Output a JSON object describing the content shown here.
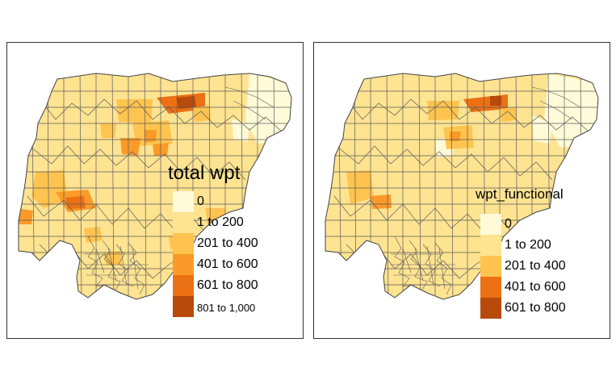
{
  "maps": [
    {
      "legend_title": "total wpt",
      "legend": [
        {
          "label": "0",
          "color": "#FFFBD9"
        },
        {
          "label": "1 to 200",
          "color": "#FEE391"
        },
        {
          "label": "201 to 400",
          "color": "#FEC44F"
        },
        {
          "label": "401 to 600",
          "color": "#FB9A29"
        },
        {
          "label": "601 to 800",
          "color": "#EC7014"
        },
        {
          "label": "801 to 1,000",
          "color": "#B84A0B"
        }
      ]
    },
    {
      "legend_title": "wpt_functional",
      "legend": [
        {
          "label": "0",
          "color": "#FFFBD9"
        },
        {
          "label": "1 to 200",
          "color": "#FEE391"
        },
        {
          "label": "201 to 400",
          "color": "#FEC44F"
        },
        {
          "label": "401 to 600",
          "color": "#EC7014"
        },
        {
          "label": "601 to 800",
          "color": "#B84A0B"
        }
      ]
    }
  ]
}
